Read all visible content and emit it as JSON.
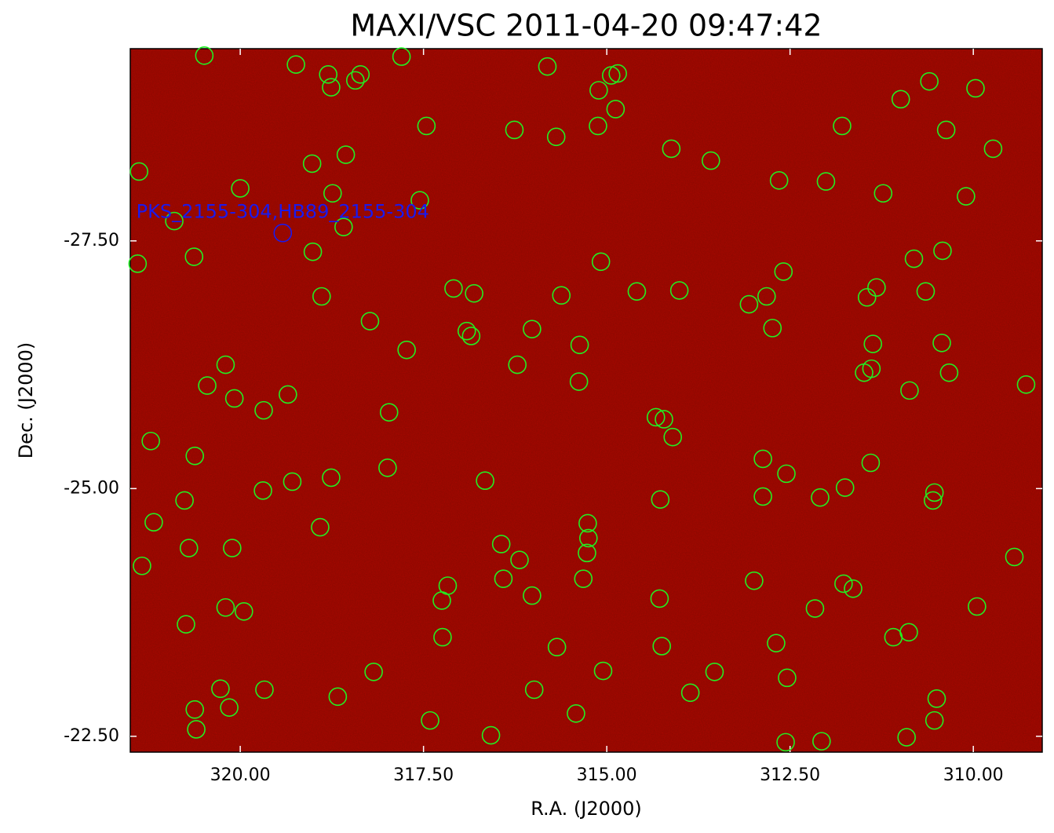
{
  "chart_data": {
    "type": "scatter",
    "title": "MAXI/VSC 2011-04-20 09:47:42",
    "x_label": "R.A. (J2000)",
    "y_label": "Dec. (J2000)",
    "xlim": [
      321.5,
      309.06
    ],
    "ylim": [
      -22.34,
      -29.44
    ],
    "xticks": [
      {
        "value": 320,
        "label": "320.00"
      },
      {
        "value": 317.5,
        "label": "317.50"
      },
      {
        "value": 315,
        "label": "315.00"
      },
      {
        "value": 312.5,
        "label": "312.50"
      },
      {
        "value": 310,
        "label": "310.00"
      }
    ],
    "yticks": [
      {
        "value": -27.5,
        "label": "-27.50"
      },
      {
        "value": -25,
        "label": "-25.00"
      },
      {
        "value": -22.5,
        "label": "-22.50"
      }
    ],
    "background": "#8e0a00",
    "series": [
      {
        "color": "#22ee22",
        "x": [
          320.49,
          319.24,
          318.8,
          318.76,
          318.43,
          318.36,
          317.8,
          315.81,
          315.11,
          314.94,
          314.85,
          314.88,
          315.12,
          316.26,
          315.69,
          317.46,
          314.12,
          313.58,
          311.79,
          310.99,
          310.6,
          309.97,
          310.37,
          309.73,
          321.38,
          319.02,
          318.56,
          320.0,
          318.74,
          317.55,
          320.9,
          318.59,
          312.65,
          312.01,
          311.23,
          310.1,
          321.4,
          320.63,
          319.01,
          315.08,
          312.59,
          310.81,
          310.42,
          317.09,
          316.81,
          315.62,
          314.59,
          314.01,
          318.89,
          313.06,
          312.82,
          311.32,
          311.45,
          310.65,
          318.23,
          316.91,
          316.85,
          316.02,
          312.74,
          317.73,
          315.37,
          311.37,
          310.43,
          320.2,
          320.45,
          316.22,
          315.38,
          311.49,
          311.39,
          310.33,
          310.87,
          309.28,
          320.08,
          319.35,
          319.68,
          317.97,
          314.33,
          314.22,
          314.1,
          321.22,
          320.62,
          317.99,
          319.29,
          318.76,
          319.69,
          316.66,
          312.87,
          312.55,
          311.4,
          320.76,
          314.27,
          312.87,
          312.09,
          311.75,
          310.55,
          310.53,
          321.18,
          318.91,
          315.26,
          315.25,
          315.27,
          316.44,
          316.19,
          320.11,
          320.7,
          321.34,
          309.44,
          316.41,
          315.32,
          317.17,
          317.25,
          316.02,
          314.28,
          312.99,
          311.77,
          311.64,
          320.2,
          319.95,
          320.74,
          312.16,
          309.95,
          317.24,
          315.68,
          314.25,
          312.69,
          311.09,
          310.88,
          318.18,
          315.05,
          313.53,
          312.54,
          320.27,
          319.67,
          318.67,
          315.99,
          313.86,
          310.5,
          320.62,
          320.15,
          320.6,
          317.41,
          316.58,
          315.42,
          310.53,
          312.56,
          312.07,
          310.91
        ],
        "y": [
          -29.37,
          -29.28,
          -29.18,
          -29.05,
          -29.12,
          -29.18,
          -29.36,
          -29.26,
          -29.02,
          -29.17,
          -29.19,
          -28.83,
          -28.66,
          -28.62,
          -28.55,
          -28.66,
          -28.43,
          -28.31,
          -28.66,
          -28.93,
          -29.11,
          -29.04,
          -28.62,
          -28.43,
          -28.2,
          -28.28,
          -28.37,
          -28.03,
          -27.98,
          -27.91,
          -27.7,
          -27.64,
          -28.11,
          -28.1,
          -27.98,
          -27.95,
          -27.27,
          -27.34,
          -27.39,
          -27.29,
          -27.19,
          -27.32,
          -27.4,
          -27.02,
          -26.97,
          -26.95,
          -26.99,
          -27.0,
          -26.94,
          -26.86,
          -26.94,
          -27.03,
          -26.93,
          -26.99,
          -26.69,
          -26.59,
          -26.54,
          -26.61,
          -26.62,
          -26.4,
          -26.45,
          -26.46,
          -26.47,
          -26.25,
          -26.04,
          -26.25,
          -26.08,
          -26.17,
          -26.21,
          -26.17,
          -25.99,
          -26.05,
          -25.91,
          -25.95,
          -25.79,
          -25.77,
          -25.72,
          -25.7,
          -25.52,
          -25.48,
          -25.33,
          -25.21,
          -25.07,
          -25.11,
          -24.98,
          -25.08,
          -25.3,
          -25.15,
          -25.26,
          -24.88,
          -24.89,
          -24.92,
          -24.91,
          -25.01,
          -24.88,
          -24.96,
          -24.66,
          -24.61,
          -24.65,
          -24.5,
          -24.35,
          -24.44,
          -24.28,
          -24.4,
          -24.4,
          -24.22,
          -24.31,
          -24.09,
          -24.09,
          -24.02,
          -23.87,
          -23.92,
          -23.89,
          -24.07,
          -24.04,
          -23.99,
          -23.8,
          -23.76,
          -23.63,
          -23.79,
          -23.81,
          -23.5,
          -23.4,
          -23.41,
          -23.44,
          -23.5,
          -23.55,
          -23.15,
          -23.16,
          -23.15,
          -23.09,
          -22.98,
          -22.97,
          -22.9,
          -22.97,
          -22.94,
          -22.88,
          -22.77,
          -22.79,
          -22.57,
          -22.66,
          -22.51,
          -22.73,
          -22.66,
          -22.44,
          -22.45,
          -22.49
        ]
      },
      {
        "color": "#1a1aee",
        "label": "PKS_2155-304,HB89_2155-304",
        "x": [
          319.42
        ],
        "y": [
          -27.58
        ]
      }
    ]
  }
}
